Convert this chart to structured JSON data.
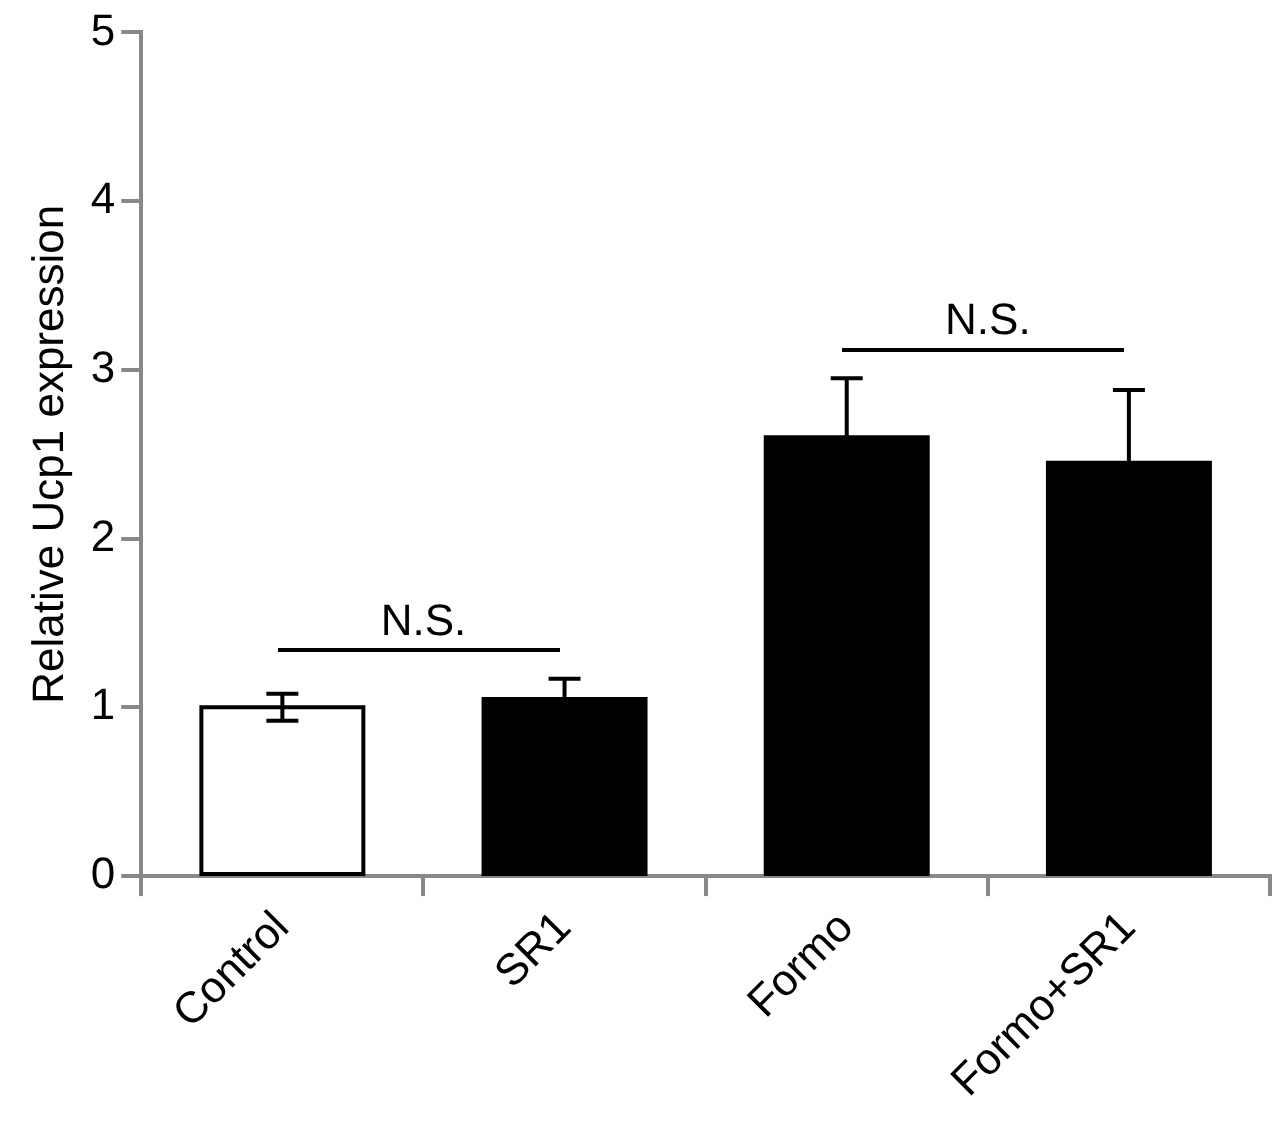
{
  "chart_data": {
    "type": "bar",
    "ylabel": "Relative Ucp1 expression",
    "categories": [
      "Control",
      "SR1",
      "Formo",
      "Formo+SR1"
    ],
    "values": [
      1.0,
      1.05,
      2.6,
      2.45
    ],
    "errors": [
      0.08,
      0.12,
      0.35,
      0.43
    ],
    "colors": [
      "#ffffff",
      "#000000",
      "#000000",
      "#000000"
    ],
    "ylim": [
      0,
      5
    ],
    "yticks": [
      0,
      1,
      2,
      3,
      4,
      5
    ],
    "grid": false,
    "legend": false,
    "annotations": [
      "N.S.",
      "N.S."
    ]
  }
}
